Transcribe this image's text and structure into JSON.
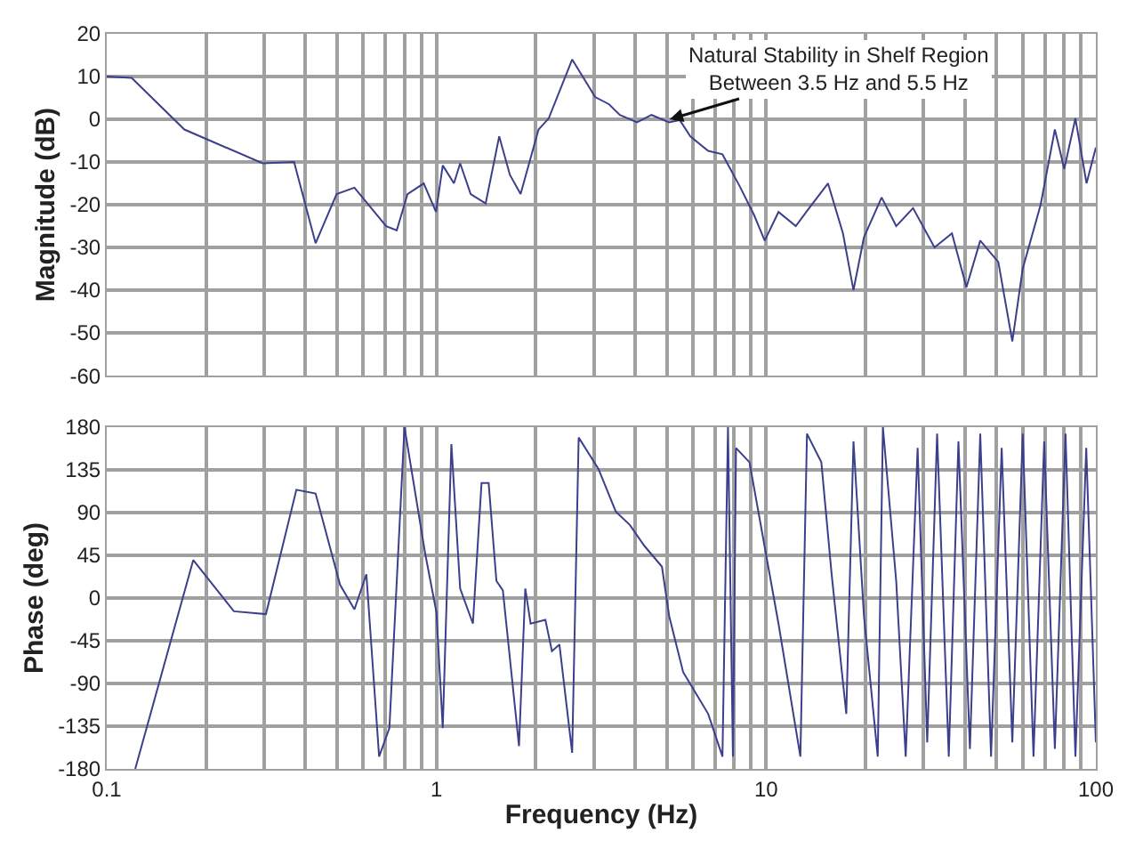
{
  "chart_data": [
    {
      "type": "line",
      "ylabel": "Magnitude (dB)",
      "tick_labels": "y",
      "grid": true,
      "log": "x",
      "xlim": [
        0.1,
        100
      ],
      "ylim": [
        -60,
        20
      ],
      "yticks": [
        -60,
        -50,
        -40,
        -30,
        -20,
        -10,
        0,
        10,
        20
      ],
      "xticks": [
        0.1,
        {
          "value": 0.2,
          "label": null
        },
        {
          "value": 0.3,
          "label": null
        },
        {
          "value": 0.4,
          "label": null
        },
        {
          "value": 0.5,
          "label": null
        },
        {
          "value": 0.6,
          "label": null
        },
        {
          "value": 0.7,
          "label": null
        },
        {
          "value": 0.8,
          "label": null
        },
        {
          "value": 0.9,
          "label": null
        },
        1,
        {
          "value": 2,
          "label": null
        },
        {
          "value": 3,
          "label": null
        },
        {
          "value": 4,
          "label": null
        },
        {
          "value": 5,
          "label": null
        },
        {
          "value": 6,
          "label": null
        },
        {
          "value": 7,
          "label": null
        },
        {
          "value": 8,
          "label": null
        },
        {
          "value": 9,
          "label": null
        },
        10,
        {
          "value": 20,
          "label": null
        },
        {
          "value": 30,
          "label": null
        },
        {
          "value": 40,
          "label": null
        },
        {
          "value": 50,
          "label": null
        },
        {
          "value": 60,
          "label": null
        },
        {
          "value": 70,
          "label": null
        },
        {
          "value": 80,
          "label": null
        },
        {
          "value": 90,
          "label": null
        },
        100
      ],
      "annotations": [
        {
          "text": "Natural Stability in Shelf Region\nBetween 3.5 Hz and 5.5 Hz",
          "x": 5.1,
          "y": 0
        }
      ],
      "series": [
        {
          "color": "#3b3f8c",
          "x": [
            0.1,
            0.119,
            0.172,
            0.297,
            0.37,
            0.43,
            0.498,
            0.564,
            0.704,
            0.758,
            0.817,
            0.915,
            0.997,
            1.045,
            1.13,
            1.18,
            1.27,
            1.41,
            1.55,
            1.67,
            1.8,
            2.04,
            2.19,
            2.58,
            3.03,
            3.34,
            3.6,
            4.06,
            4.49,
            5.08,
            5.47,
            5.89,
            6.67,
            7.37,
            8.33,
            9.2,
            9.9,
            10.9,
            12.3,
            13.5,
            15.4,
            17.1,
            18.4,
            19.8,
            22.4,
            24.8,
            27.9,
            32.4,
            36.6,
            40.5,
            44.6,
            50.6,
            55.8,
            60,
            68,
            75.1,
            80.2,
            86.7,
            93.7,
            100
          ],
          "values": [
            10,
            9.7,
            -2.4,
            -10.3,
            -10,
            -29,
            -17.5,
            -16,
            -25,
            -26,
            -17.5,
            -15,
            -21.7,
            -10.8,
            -15,
            -10.3,
            -17.5,
            -19.7,
            -4,
            -13,
            -17.5,
            -2.4,
            0.2,
            14,
            5.2,
            3.5,
            1,
            -0.7,
            1,
            -0.7,
            -0.2,
            -4,
            -7.4,
            -8.2,
            -15.8,
            -22.5,
            -28.4,
            -21.7,
            -25,
            -20.8,
            -15,
            -26.7,
            -40,
            -27.6,
            -18.3,
            -25,
            -20.8,
            -30,
            -26.7,
            -39.3,
            -28.4,
            -33.4,
            -52,
            -35,
            -20,
            -2.4,
            -11.6,
            0.2,
            -15,
            -6.6
          ]
        }
      ]
    },
    {
      "type": "line",
      "xlabel": "Frequency (Hz)",
      "ylabel": "Phase (deg)",
      "grid": true,
      "log": "x",
      "xlim": [
        0.1,
        100
      ],
      "ylim": [
        -180,
        180
      ],
      "yticks": [
        -180,
        -135,
        -90,
        -45,
        0,
        45,
        90,
        135,
        180
      ],
      "xticks": [
        0.1,
        {
          "value": 0.2,
          "label": null
        },
        {
          "value": 0.3,
          "label": null
        },
        {
          "value": 0.4,
          "label": null
        },
        {
          "value": 0.5,
          "label": null
        },
        {
          "value": 0.6,
          "label": null
        },
        {
          "value": 0.7,
          "label": null
        },
        {
          "value": 0.8,
          "label": null
        },
        {
          "value": 0.9,
          "label": null
        },
        1,
        {
          "value": 2,
          "label": null
        },
        {
          "value": 3,
          "label": null
        },
        {
          "value": 4,
          "label": null
        },
        {
          "value": 5,
          "label": null
        },
        {
          "value": 6,
          "label": null
        },
        {
          "value": 7,
          "label": null
        },
        {
          "value": 8,
          "label": null
        },
        {
          "value": 9,
          "label": null
        },
        10,
        {
          "value": 20,
          "label": null
        },
        {
          "value": 30,
          "label": null
        },
        {
          "value": 40,
          "label": null
        },
        {
          "value": 50,
          "label": null
        },
        {
          "value": 60,
          "label": null
        },
        {
          "value": 70,
          "label": null
        },
        {
          "value": 80,
          "label": null
        },
        {
          "value": 90,
          "label": null
        },
        100
      ],
      "series": [
        {
          "color": "#3b3f8c",
          "x": [
            0.122,
            0.183,
            0.243,
            0.304,
            0.376,
            0.43,
            0.51,
            0.564,
            0.613,
            0.67,
            0.72,
            0.8,
            0.924,
            1.0,
            1.045,
            1.11,
            1.18,
            1.29,
            1.37,
            1.44,
            1.52,
            1.59,
            1.78,
            1.86,
            1.93,
            2.14,
            2.24,
            2.36,
            2.58,
            2.7,
            3.1,
            3.5,
            3.86,
            4.27,
            4.83,
            5.08,
            5.6,
            6.67,
            7.37,
            7.66,
            7.93,
            8.1,
            8.9,
            10.9,
            12.7,
            13.3,
            14.7,
            15.8,
            17.5,
            18.4,
            19.8,
            21.8,
            22.6,
            24.8,
            26.5,
            28.8,
            30.8,
            33,
            35.8,
            38.3,
            41.5,
            44.6,
            48.1,
            51.8,
            55.8,
            60,
            64.7,
            69.7,
            75.1,
            80.9,
            86.7,
            93.5,
            100
          ],
          "values": [
            -180,
            40,
            -14,
            -17,
            114,
            110,
            14,
            -12,
            25,
            -167,
            -137,
            180,
            47,
            -15,
            -137,
            162,
            10,
            -27,
            121,
            121,
            18,
            8,
            -156,
            10,
            -27,
            -23,
            -56,
            -49,
            -163,
            169,
            136,
            91,
            77,
            55,
            33,
            -19,
            -78,
            -122,
            -167,
            180,
            -167,
            158,
            143,
            -27,
            -167,
            173,
            143,
            25,
            -122,
            165,
            -19,
            -167,
            180,
            18,
            -167,
            158,
            -152,
            173,
            -167,
            165,
            -159,
            173,
            -167,
            158,
            -152,
            173,
            -167,
            165,
            -159,
            173,
            -167,
            158,
            -152
          ]
        }
      ]
    }
  ]
}
